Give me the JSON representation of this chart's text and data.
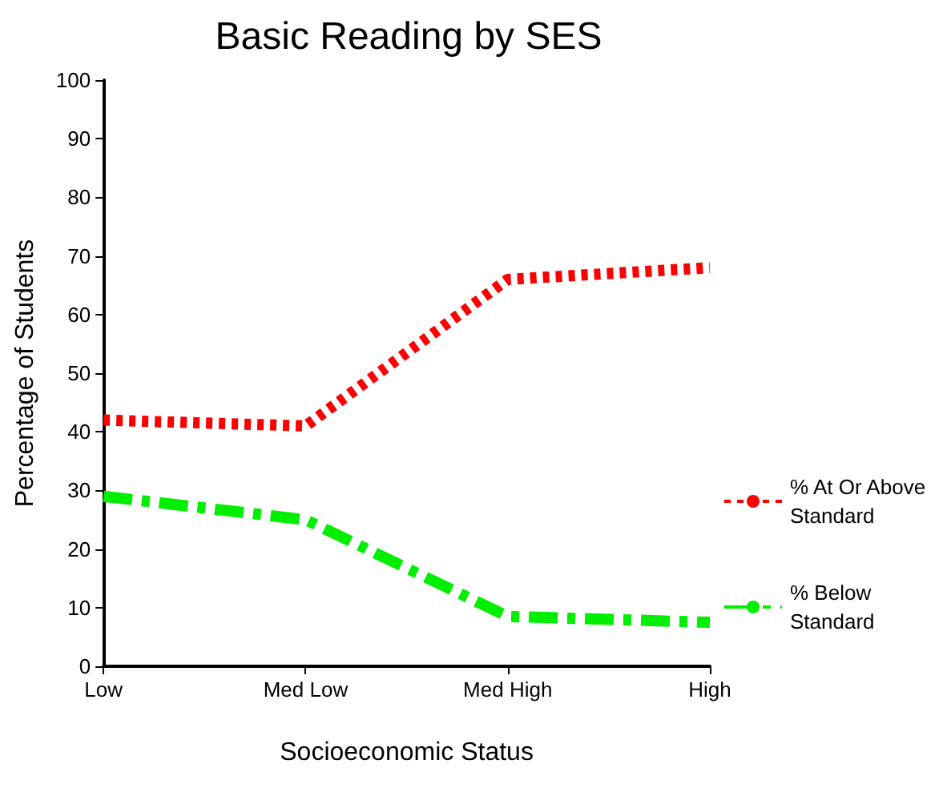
{
  "chart_data": {
    "type": "line",
    "title": "Basic Reading by SES",
    "xlabel": "Socioeconomic Status",
    "ylabel": "Percentage of Students",
    "categories": [
      "Low",
      "Med Low",
      "Med High",
      "High"
    ],
    "series": [
      {
        "name": "% At Or Above Standard",
        "color": "#ff0000",
        "line_style": "dotted",
        "values": [
          42,
          41,
          66,
          68
        ]
      },
      {
        "name": "% Below Standard",
        "color": "#00ee00",
        "line_style": "dashdot",
        "values": [
          29,
          25,
          8.5,
          7.5
        ]
      }
    ],
    "ylim": [
      0,
      100
    ],
    "yticks": [
      0,
      10,
      20,
      30,
      40,
      50,
      60,
      70,
      80,
      90,
      100
    ],
    "grid": false,
    "legend": "right",
    "marker": "none"
  }
}
